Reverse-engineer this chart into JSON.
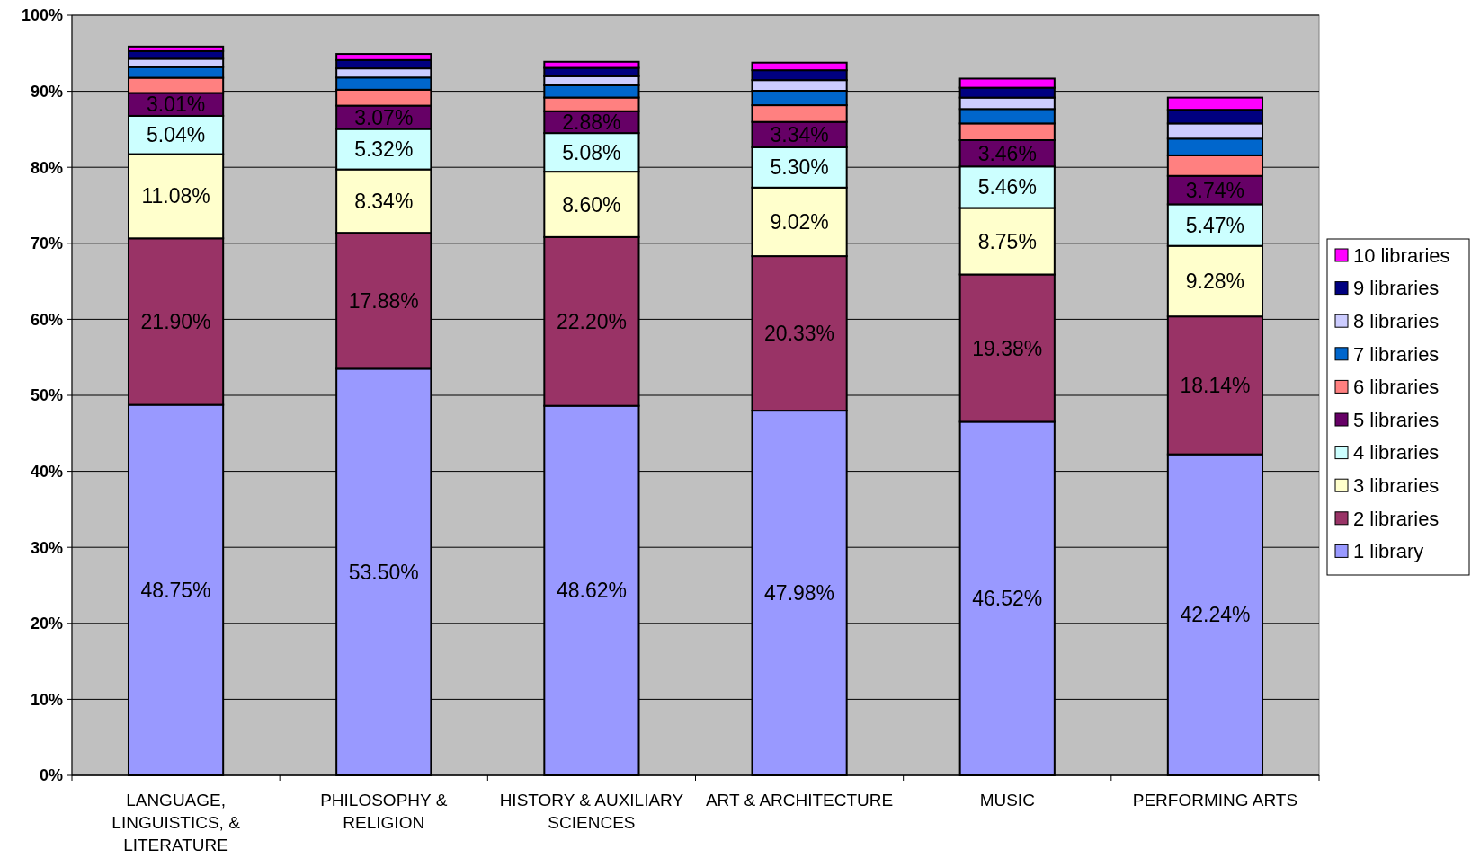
{
  "chart_data": {
    "type": "bar",
    "stacked": true,
    "grid": "y",
    "legend": "right",
    "categories": [
      "LANGUAGE, LINGUISTICS, & LITERATURE",
      "PHILOSOPHY & RELIGION",
      "HISTORY & AUXILIARY SCIENCES",
      "ART & ARCHITECTURE",
      "MUSIC",
      "PERFORMING ARTS"
    ],
    "ylim": [
      0,
      100
    ],
    "yticks": [
      {
        "value": 0,
        "label": "0%"
      },
      {
        "value": 10,
        "label": "10%"
      },
      {
        "value": 20,
        "label": "20%"
      },
      {
        "value": 30,
        "label": "30%"
      },
      {
        "value": 40,
        "label": "40%"
      },
      {
        "value": 50,
        "label": "50%"
      },
      {
        "value": 60,
        "label": "60%"
      },
      {
        "value": 70,
        "label": "70%"
      },
      {
        "value": 80,
        "label": "80%"
      },
      {
        "value": 90,
        "label": "90%"
      },
      {
        "value": 100,
        "label": "100%"
      }
    ],
    "series": [
      {
        "name": "1 library",
        "color": "#9999ff",
        "values": [
          48.75,
          53.5,
          48.62,
          47.98,
          46.52,
          42.24
        ],
        "value_labels": [
          "48.75%",
          "53.50%",
          "48.62%",
          "47.98%",
          "46.52%",
          "42.24%"
        ]
      },
      {
        "name": "2 libraries",
        "color": "#993366",
        "values": [
          21.9,
          17.88,
          22.2,
          20.33,
          19.38,
          18.14
        ],
        "value_labels": [
          "21.90%",
          "17.88%",
          "22.20%",
          "20.33%",
          "19.38%",
          "18.14%"
        ]
      },
      {
        "name": "3 libraries",
        "color": "#ffffcc",
        "values": [
          11.08,
          8.34,
          8.6,
          9.02,
          8.75,
          9.28
        ],
        "value_labels": [
          "11.08%",
          "8.34%",
          "8.60%",
          "9.02%",
          "8.75%",
          "9.28%"
        ]
      },
      {
        "name": "4 libraries",
        "color": "#ccffff",
        "values": [
          5.04,
          5.32,
          5.08,
          5.3,
          5.46,
          5.47
        ],
        "value_labels": [
          "5.04%",
          "5.32%",
          "5.08%",
          "5.30%",
          "5.46%",
          "5.47%"
        ]
      },
      {
        "name": "5 libraries",
        "color": "#660066",
        "values": [
          3.01,
          3.07,
          2.88,
          3.34,
          3.46,
          3.74
        ],
        "value_labels": [
          "3.01%",
          "3.07%",
          "2.88%",
          "3.34%",
          "3.46%",
          "3.74%"
        ]
      },
      {
        "name": "6 libraries",
        "color": "#ff8080",
        "values": [
          2.0,
          2.1,
          1.8,
          2.2,
          2.2,
          2.7
        ]
      },
      {
        "name": "7 libraries",
        "color": "#0066cc",
        "values": [
          1.4,
          1.6,
          1.6,
          1.9,
          1.9,
          2.2
        ]
      },
      {
        "name": "8 libraries",
        "color": "#ccccff",
        "values": [
          1.1,
          1.2,
          1.2,
          1.4,
          1.5,
          2.0
        ]
      },
      {
        "name": "9 libraries",
        "color": "#000080",
        "values": [
          1.0,
          1.1,
          1.1,
          1.3,
          1.3,
          1.8
        ]
      },
      {
        "name": "10 libraries",
        "color": "#ff00ff",
        "values": [
          0.6,
          0.8,
          0.8,
          1.0,
          1.2,
          1.6
        ]
      }
    ]
  }
}
